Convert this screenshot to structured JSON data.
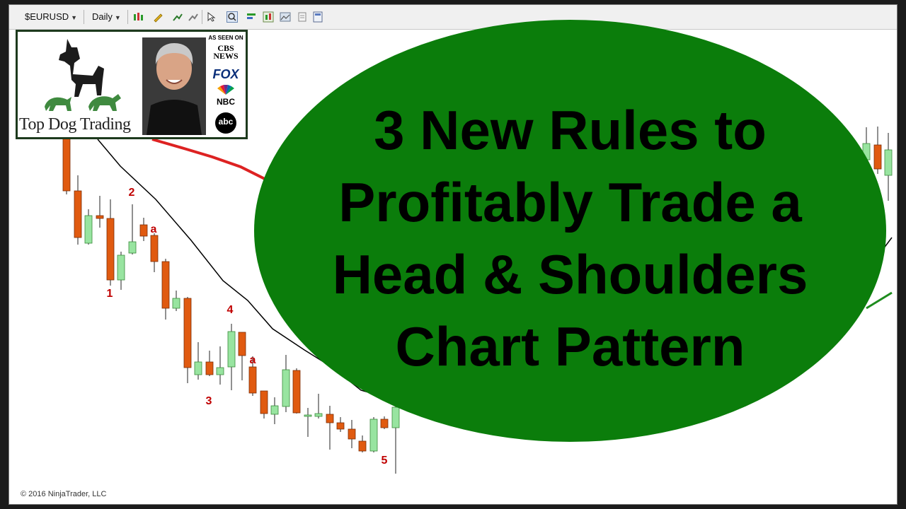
{
  "toolbar": {
    "instrument": "$EURUSD",
    "timeframe": "Daily"
  },
  "brand": {
    "name": "Top Dog Trading",
    "media_caption": "AS SEEN ON",
    "media_outlets": [
      "CBS NEWS",
      "FOX",
      "NBC",
      "abc"
    ]
  },
  "headline": {
    "lines": [
      "3 New Rules to",
      "Profitably Trade a",
      "Head & Shoulders",
      "Chart Pattern"
    ]
  },
  "copyright": "© 2016 NinjaTrader, LLC",
  "colors": {
    "bearish_candle": "#e05a10",
    "bullish_candle": "#98e4a0",
    "headline_oval": "#0b7d0b",
    "wave_label": "#c00000",
    "slow_ma": "#dd2222",
    "fast_ma": "#000000",
    "right_ma": "#1e8c1e"
  },
  "chart_data": {
    "type": "candlestick",
    "instrument": "$EURUSD",
    "timeframe": "Daily",
    "wave_labels": [
      "1",
      "2",
      "3",
      "4",
      "5",
      "a",
      "a"
    ]
  }
}
